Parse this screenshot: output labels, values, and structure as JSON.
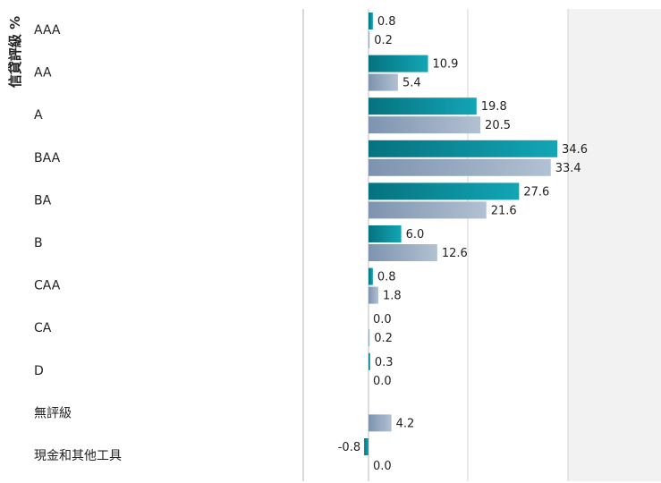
{
  "chart_data": {
    "type": "bar",
    "orientation": "horizontal",
    "ylabel": "信貸評級 %",
    "categories": [
      "AAA",
      "AA",
      "A",
      "BAA",
      "BA",
      "B",
      "CAA",
      "CA",
      "D",
      "無評級",
      "現金和其他工具"
    ],
    "series": [
      {
        "values": [
          0.8,
          10.9,
          19.8,
          34.6,
          27.6,
          6.0,
          0.8,
          0.0,
          0.3,
          null,
          -0.8
        ],
        "labels": [
          "0.8",
          "10.9",
          "19.8",
          "34.6",
          "27.6",
          "6.0",
          "0.8",
          "0.0",
          "0.3",
          "",
          "-0.8"
        ],
        "color": "#0b8d9c"
      },
      {
        "values": [
          0.2,
          5.4,
          20.5,
          33.4,
          21.6,
          12.6,
          1.8,
          0.2,
          0.0,
          4.2,
          0.0
        ],
        "labels": [
          "0.2",
          "5.4",
          "20.5",
          "33.4",
          "21.6",
          "12.6",
          "1.8",
          "0.2",
          "0.0",
          "4.2",
          "0.0"
        ],
        "color": "#8ea3bd"
      }
    ],
    "xlim": [
      0,
      40
    ],
    "grid": true,
    "legend": "none"
  }
}
